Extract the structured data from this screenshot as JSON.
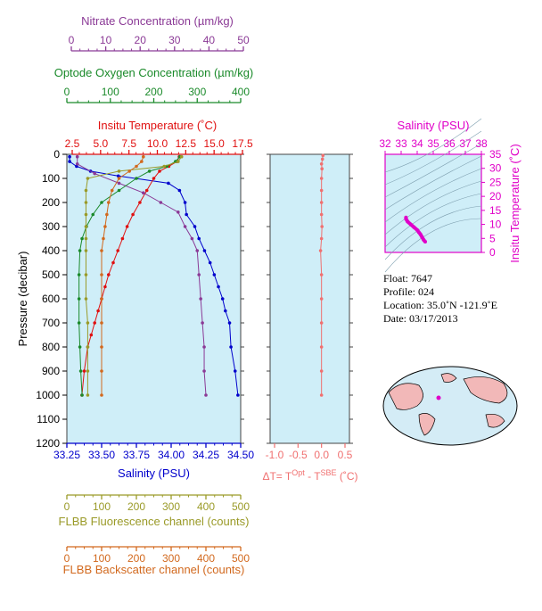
{
  "colors": {
    "nitrate": "#8b3a96",
    "oxygen": "#1a8a2a",
    "temperature": "#e01010",
    "salinity": "#0000cc",
    "fluorescence": "#9a9a28",
    "backscatter": "#d2691e",
    "deltaT": "#f07070",
    "inset": "#e000c8",
    "plot_bg": "#cfeef8",
    "frame": "#7a7a1a"
  },
  "axes": {
    "nitrate": {
      "label": "Nitrate Concentration (µm/kg)",
      "ticks": [
        "0",
        "10",
        "20",
        "30",
        "40",
        "50"
      ]
    },
    "oxygen": {
      "label": "Optode Oxygen Concentration (µm/kg)",
      "ticks": [
        "0",
        "100",
        "200",
        "300",
        "400"
      ]
    },
    "temperature": {
      "label": "Insitu Temperature (˚C)",
      "ticks": [
        "2.5",
        "5.0",
        "7.5",
        "10.0",
        "12.5",
        "15.0",
        "17.5"
      ]
    },
    "salinity": {
      "label": "Salinity (PSU)",
      "ticks": [
        "33.25",
        "33.50",
        "33.75",
        "34.00",
        "34.25",
        "34.50"
      ]
    },
    "pressure": {
      "label": "Pressure (decibar)",
      "ticks": [
        "0",
        "100",
        "200",
        "300",
        "400",
        "500",
        "600",
        "700",
        "800",
        "900",
        "1000",
        "1100",
        "1200"
      ]
    },
    "fluorescence": {
      "label": "FLBB Fluorescence channel (counts)",
      "ticks": [
        "0",
        "100",
        "200",
        "300",
        "400",
        "500"
      ]
    },
    "backscatter": {
      "label": "FLBB Backscatter channel (counts)",
      "ticks": [
        "0",
        "100",
        "200",
        "300",
        "400",
        "500"
      ]
    },
    "deltaT": {
      "ticks": [
        "-1.0",
        "-0.5",
        "0.0",
        "0.5"
      ],
      "label_main": "ΔT= T",
      "label_sup1": "Opt",
      "label_mid": " - T",
      "label_sup2": "SBE",
      "label_end": " (˚C)"
    },
    "inset_salinity": {
      "label": "Salinity (PSU)",
      "ticks": [
        "32",
        "33",
        "34",
        "35",
        "36",
        "37",
        "38"
      ]
    },
    "inset_temperature": {
      "label": "Insitu Temperature (˚C)",
      "ticks": [
        "0",
        "5",
        "10",
        "15",
        "20",
        "25",
        "30",
        "35"
      ]
    }
  },
  "info": {
    "float": "Float:  7647",
    "profile": "Profile:  024",
    "location": "Location:  35.0˚N  -121.9˚E",
    "date": "Date:  03/17/2013"
  },
  "chart_data": [
    {
      "type": "line",
      "ylabel": "Pressure (decibar)",
      "ylim": [
        1200,
        0
      ],
      "y_reversed": true,
      "series": [
        {
          "name": "Salinity (PSU)",
          "xlim": [
            33.25,
            34.5
          ],
          "x": [
            33.27,
            33.27,
            33.32,
            33.42,
            33.62,
            33.98,
            34.06,
            34.1,
            34.11,
            34.17,
            34.2,
            34.24,
            34.28,
            34.31,
            34.34,
            34.37,
            34.39,
            34.42,
            34.43,
            34.46,
            34.48
          ],
          "y": [
            10,
            30,
            50,
            70,
            90,
            120,
            150,
            200,
            250,
            300,
            350,
            400,
            450,
            500,
            550,
            600,
            650,
            700,
            800,
            900,
            1000
          ]
        },
        {
          "name": "Insitu Temperature (˚C)",
          "xlim": [
            2.5,
            17.5
          ],
          "x": [
            12.2,
            12.0,
            11.3,
            10.5,
            10.0,
            9.4,
            8.8,
            8.2,
            7.7,
            7.3,
            6.9,
            6.5,
            6.1,
            5.8,
            5.5,
            5.2,
            4.9,
            4.6,
            4.3,
            4.0,
            3.8
          ],
          "y": [
            10,
            30,
            50,
            70,
            100,
            150,
            200,
            250,
            300,
            350,
            400,
            450,
            500,
            550,
            600,
            650,
            700,
            750,
            800,
            900,
            1000
          ]
        },
        {
          "name": "Nitrate Concentration (µm/kg)",
          "xlim": [
            0,
            50
          ],
          "x": [
            3,
            3,
            8,
            15,
            22,
            27,
            32,
            34,
            36,
            37.5,
            38,
            38.5,
            39,
            39.5,
            39.5,
            40
          ],
          "y": [
            10,
            40,
            80,
            120,
            160,
            200,
            240,
            300,
            350,
            400,
            500,
            600,
            700,
            800,
            900,
            1000
          ]
        },
        {
          "name": "Optode Oxygen Concentration (µm/kg)",
          "xlim": [
            0,
            400
          ],
          "x": [
            260,
            250,
            230,
            190,
            160,
            120,
            80,
            60,
            45,
            35,
            30,
            28,
            28,
            28,
            30,
            32,
            35
          ],
          "y": [
            10,
            30,
            50,
            70,
            100,
            150,
            200,
            250,
            300,
            350,
            400,
            500,
            600,
            700,
            800,
            900,
            1000
          ]
        },
        {
          "name": "FLBB Fluorescence channel (counts)",
          "xlim": [
            0,
            500
          ],
          "x": [
            330,
            320,
            280,
            150,
            60,
            55,
            55,
            55,
            55,
            55,
            55,
            55,
            55,
            60,
            60,
            60,
            60
          ],
          "y": [
            10,
            30,
            50,
            70,
            100,
            150,
            200,
            250,
            300,
            350,
            400,
            500,
            600,
            700,
            800,
            900,
            1000
          ]
        },
        {
          "name": "FLBB Backscatter channel (counts)",
          "xlim": [
            0,
            500
          ],
          "x": [
            220,
            215,
            200,
            180,
            150,
            130,
            120,
            115,
            110,
            105,
            100,
            100,
            100,
            100,
            100,
            100,
            100
          ],
          "y": [
            10,
            30,
            50,
            70,
            100,
            150,
            200,
            250,
            300,
            350,
            400,
            500,
            600,
            700,
            800,
            900,
            1000
          ]
        }
      ]
    },
    {
      "type": "line",
      "xlabel": "ΔT= T^Opt - T^SBE (˚C)",
      "xlim": [
        -1.0,
        0.5
      ],
      "ylim": [
        1200,
        0
      ],
      "series": [
        {
          "name": "ΔT",
          "x": [
            0.03,
            0.02,
            0.0,
            0.01,
            0.0,
            0.0,
            0.0,
            0.0,
            0.01,
            0.0,
            -0.02,
            0.0,
            0.0,
            0.0,
            0.0,
            0.0,
            0.0
          ],
          "y": [
            5,
            20,
            40,
            60,
            100,
            150,
            200,
            250,
            300,
            350,
            400,
            500,
            600,
            700,
            800,
            900,
            1000
          ]
        }
      ]
    },
    {
      "type": "scatter",
      "xlabel": "Salinity (PSU)",
      "ylabel": "Insitu Temperature (˚C)",
      "xlim": [
        32,
        38
      ],
      "ylim": [
        0,
        35
      ],
      "series": [
        {
          "name": "T-S",
          "x": [
            33.3,
            33.3,
            33.4,
            33.6,
            33.8,
            34.0,
            34.1,
            34.2,
            34.3,
            34.4,
            34.5
          ],
          "y": [
            12.5,
            12.0,
            11.0,
            10.0,
            9.0,
            8.0,
            7.2,
            6.5,
            5.5,
            4.5,
            3.8
          ]
        }
      ]
    }
  ]
}
